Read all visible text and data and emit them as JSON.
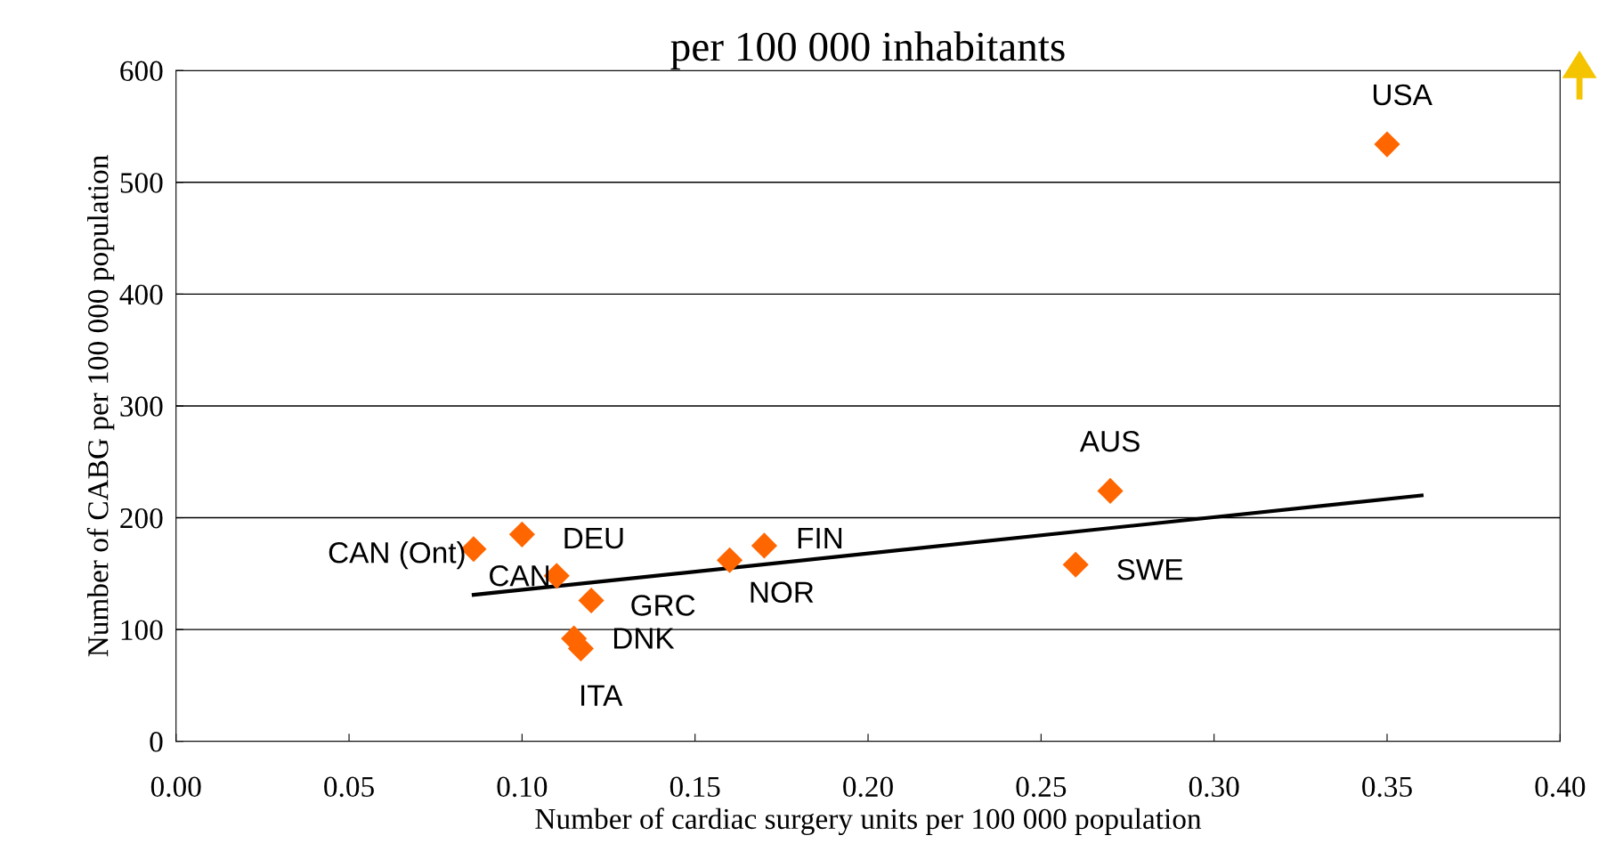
{
  "chart_data": {
    "type": "scatter",
    "title": "per 100 000 inhabitants",
    "xlabel": "Number of cardiac surgery units per 100 000 population",
    "ylabel": "Number of CABG per 100 000 population",
    "series": [
      {
        "color": "#ff6600",
        "marker": "diamond",
        "x": [
          0.35,
          0.27,
          0.26,
          0.17,
          0.16,
          0.1,
          0.086,
          0.11,
          0.12,
          0.115,
          0.117
        ],
        "values": [
          534,
          224,
          158,
          175,
          162,
          185,
          172,
          148,
          126,
          92,
          83
        ]
      },
      {
        "type": "line",
        "color": "#000000",
        "marker": "none",
        "line_style": "solid",
        "x": [
          0.086,
          0.36
        ],
        "values": [
          131,
          220
        ]
      }
    ],
    "annotations": [
      {
        "text": "USA",
        "x": 0.35,
        "y": 534
      },
      {
        "text": "AUS",
        "x": 0.27,
        "y": 224
      },
      {
        "text": "SWE",
        "x": 0.26,
        "y": 158
      },
      {
        "text": "FIN",
        "x": 0.17,
        "y": 175
      },
      {
        "text": "NOR",
        "x": 0.16,
        "y": 162
      },
      {
        "text": "DEU",
        "x": 0.1,
        "y": 185
      },
      {
        "text": "CAN (Ont)",
        "x": 0.086,
        "y": 172
      },
      {
        "text": "CAN",
        "x": 0.11,
        "y": 148
      },
      {
        "text": "GRC",
        "x": 0.12,
        "y": 126
      },
      {
        "text": "DNK",
        "x": 0.115,
        "y": 92
      },
      {
        "text": "ITA",
        "x": 0.117,
        "y": 83
      }
    ],
    "xlim": [
      0,
      0.4
    ],
    "xticks": [
      {
        "value": 0,
        "label": "0.00"
      },
      0.05,
      {
        "value": 0.1,
        "label": "0.10"
      },
      0.15,
      {
        "value": 0.2,
        "label": "0.20"
      },
      0.25,
      {
        "value": 0.3,
        "label": "0.30"
      },
      0.35,
      {
        "value": 0.4,
        "label": "0.40"
      }
    ],
    "ylim": [
      0,
      600
    ],
    "yticks": [
      0,
      100,
      200,
      300,
      400,
      500,
      600
    ],
    "grid": "y",
    "legend": false
  }
}
